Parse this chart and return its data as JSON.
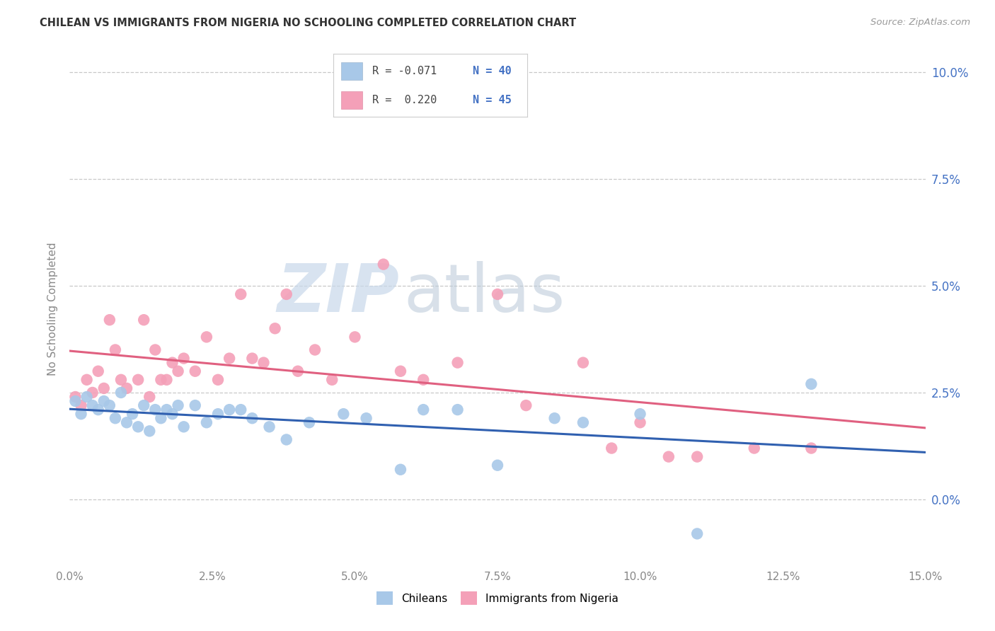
{
  "title": "CHILEAN VS IMMIGRANTS FROM NIGERIA NO SCHOOLING COMPLETED CORRELATION CHART",
  "source": "Source: ZipAtlas.com",
  "ylabel": "No Schooling Completed",
  "x_min": 0.0,
  "x_max": 0.15,
  "y_min": -0.016,
  "y_max": 0.105,
  "chilean_color": "#a8c8e8",
  "nigerian_color": "#f4a0b8",
  "chilean_line_color": "#3060b0",
  "nigerian_line_color": "#e06080",
  "legend_label_1": "Chileans",
  "legend_label_2": "Immigrants from Nigeria",
  "R_chilean": -0.071,
  "N_chilean": 40,
  "R_nigerian": 0.22,
  "N_nigerian": 45,
  "background_color": "#ffffff",
  "grid_color": "#c8c8c8",
  "title_color": "#333333",
  "axis_label_color": "#888888",
  "right_tick_color": "#4472c4",
  "watermark_color_zip": "#c8d8ea",
  "watermark_color_atlas": "#c0c8d8",
  "ch_x": [
    0.001,
    0.002,
    0.003,
    0.004,
    0.005,
    0.006,
    0.007,
    0.008,
    0.009,
    0.01,
    0.011,
    0.012,
    0.013,
    0.014,
    0.015,
    0.016,
    0.017,
    0.018,
    0.019,
    0.02,
    0.022,
    0.024,
    0.026,
    0.028,
    0.03,
    0.032,
    0.035,
    0.038,
    0.042,
    0.048,
    0.052,
    0.058,
    0.062,
    0.068,
    0.075,
    0.085,
    0.09,
    0.1,
    0.11,
    0.13
  ],
  "ch_y": [
    0.023,
    0.02,
    0.024,
    0.022,
    0.021,
    0.023,
    0.022,
    0.019,
    0.025,
    0.018,
    0.02,
    0.017,
    0.022,
    0.016,
    0.021,
    0.019,
    0.021,
    0.02,
    0.022,
    0.017,
    0.022,
    0.018,
    0.02,
    0.021,
    0.021,
    0.019,
    0.017,
    0.014,
    0.018,
    0.02,
    0.019,
    0.007,
    0.021,
    0.021,
    0.008,
    0.019,
    0.018,
    0.02,
    -0.008,
    0.027
  ],
  "ng_x": [
    0.001,
    0.002,
    0.003,
    0.004,
    0.005,
    0.006,
    0.007,
    0.008,
    0.009,
    0.01,
    0.012,
    0.013,
    0.014,
    0.015,
    0.016,
    0.017,
    0.018,
    0.019,
    0.02,
    0.022,
    0.024,
    0.026,
    0.028,
    0.03,
    0.032,
    0.034,
    0.036,
    0.038,
    0.04,
    0.043,
    0.046,
    0.05,
    0.055,
    0.058,
    0.062,
    0.068,
    0.075,
    0.08,
    0.09,
    0.095,
    0.1,
    0.105,
    0.11,
    0.12,
    0.13
  ],
  "ng_y": [
    0.024,
    0.022,
    0.028,
    0.025,
    0.03,
    0.026,
    0.042,
    0.035,
    0.028,
    0.026,
    0.028,
    0.042,
    0.024,
    0.035,
    0.028,
    0.028,
    0.032,
    0.03,
    0.033,
    0.03,
    0.038,
    0.028,
    0.033,
    0.048,
    0.033,
    0.032,
    0.04,
    0.048,
    0.03,
    0.035,
    0.028,
    0.038,
    0.055,
    0.03,
    0.028,
    0.032,
    0.048,
    0.022,
    0.032,
    0.012,
    0.018,
    0.01,
    0.01,
    0.012,
    0.012
  ]
}
